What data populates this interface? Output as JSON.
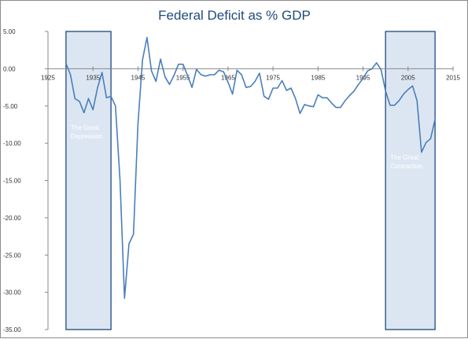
{
  "chart_data": {
    "type": "line",
    "title": "Federal Deficit as % GDP",
    "xlabel": "",
    "ylabel": "",
    "xlim": [
      1925,
      2015
    ],
    "ylim": [
      -35,
      5
    ],
    "x_ticks": [
      1925,
      1935,
      1945,
      1955,
      1965,
      1975,
      1985,
      1995,
      2005,
      2015
    ],
    "y_ticks": [
      5,
      0,
      -5,
      -10,
      -15,
      -20,
      -25,
      -30,
      -35
    ],
    "y_tick_labels": [
      "5.00",
      "0.00",
      "-5.00",
      "-10.00",
      "-15.00",
      "-20.00",
      "-25.00",
      "-30.00",
      "-35.00"
    ],
    "grid": false,
    "legend": "none",
    "line_color": "#4a7ebb",
    "shade_fill": "#dce6f2",
    "shade_stroke": "#1f497d",
    "shaded_regions": [
      {
        "label": "The Great Depression",
        "x": [
          1929,
          1939
        ],
        "y": [
          -35,
          5
        ]
      },
      {
        "label": "The Great Contraction",
        "x": [
          2000,
          2011
        ],
        "y": [
          -35,
          5
        ]
      }
    ],
    "series": [
      {
        "x": [
          1929,
          1930,
          1931,
          1932,
          1933,
          1934,
          1935,
          1936,
          1937,
          1938,
          1939,
          1940,
          1941,
          1942,
          1943,
          1944,
          1945,
          1946,
          1947,
          1948,
          1949,
          1950,
          1951,
          1952,
          1953,
          1954,
          1955,
          1956,
          1957,
          1958,
          1959,
          1960,
          1961,
          1962,
          1963,
          1964,
          1965,
          1966,
          1967,
          1968,
          1969,
          1970,
          1971,
          1972,
          1973,
          1974,
          1975,
          1976,
          1977,
          1978,
          1979,
          1980,
          1981,
          1982,
          1983,
          1984,
          1985,
          1986,
          1987,
          1988,
          1989,
          1990,
          1991,
          1992,
          1993,
          1994,
          1995,
          1996,
          1997,
          1998,
          1999,
          2000,
          2001,
          2002,
          2003,
          2004,
          2005,
          2006,
          2007,
          2008,
          2009,
          2010,
          2011,
          2012
        ],
        "values": [
          0.7,
          -0.8,
          -4.0,
          -4.4,
          -5.9,
          -4.0,
          -5.5,
          -2.6,
          -0.5,
          -3.9,
          -3.7,
          -5.0,
          -15.0,
          -30.8,
          -23.5,
          -22.2,
          -7.4,
          1.2,
          4.2,
          -0.3,
          -1.7,
          1.3,
          -1.1,
          -2.1,
          -0.9,
          0.6,
          0.6,
          -0.9,
          -2.5,
          -0.1,
          -0.8,
          -1.0,
          -0.8,
          -0.8,
          -0.2,
          -0.4,
          -1.8,
          -3.4,
          -0.2,
          -0.8,
          -2.5,
          -2.4,
          -1.7,
          -0.6,
          -3.7,
          -4.1,
          -2.6,
          -2.6,
          -1.6,
          -2.9,
          -2.6,
          -4.0,
          -6.0,
          -4.8,
          -5.0,
          -5.1,
          -3.5,
          -3.9,
          -3.9,
          -4.6,
          -5.2,
          -5.2,
          -4.3,
          -3.6,
          -3.0,
          -2.1,
          -1.3,
          -0.3,
          0.0,
          0.8,
          -0.1,
          -3.0,
          -4.9,
          -4.9,
          -4.3,
          -3.4,
          -2.8,
          -2.3,
          -4.3,
          -11.2,
          -9.9,
          -9.4,
          -6.8,
          null
        ],
        "line_color": "#4a7ebb"
      }
    ]
  }
}
